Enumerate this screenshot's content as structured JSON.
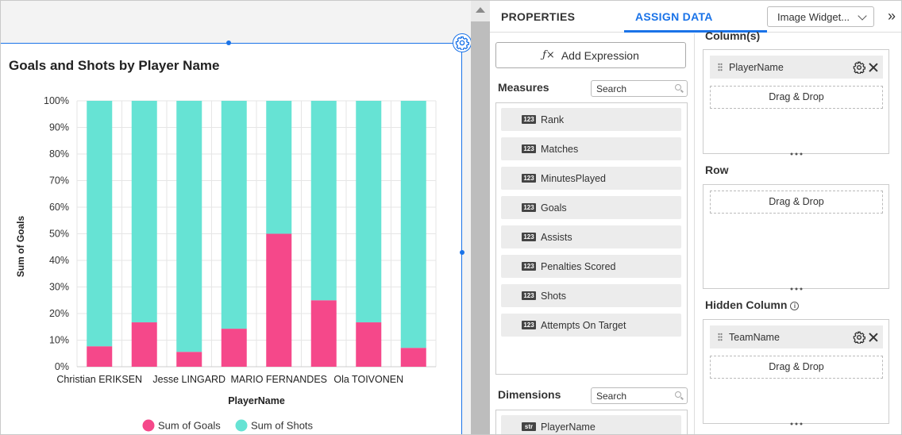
{
  "canvas": {
    "widget_title": "Goals and Shots by Player Name"
  },
  "chart_data": {
    "type": "bar",
    "stacked": "100%",
    "title": "Goals and Shots by Player Name",
    "xlabel": "PlayerName",
    "ylabel": "Sum of Goals",
    "ylim": [
      0,
      100
    ],
    "y_ticks": [
      "0%",
      "10%",
      "20%",
      "30%",
      "40%",
      "50%",
      "60%",
      "70%",
      "80%",
      "90%",
      "100%"
    ],
    "x_tick_labels": [
      "Christian ERIKSEN",
      "Jesse LINGARD",
      "MARIO FERNANDES",
      "Ola TOIVONEN"
    ],
    "categories": [
      "",
      "",
      "",
      "",
      "",
      "",
      "",
      ""
    ],
    "series": [
      {
        "name": "Sum of Goals",
        "color": "#f5488a",
        "values": [
          7.7,
          16.7,
          5.6,
          14.3,
          50,
          25,
          16.7,
          7.1
        ]
      },
      {
        "name": "Sum of Shots",
        "color": "#66e3d4",
        "values": [
          92.3,
          83.3,
          94.4,
          85.7,
          50,
          75,
          83.3,
          92.9
        ]
      }
    ],
    "legend": "bottom",
    "grid": true
  },
  "panel": {
    "tab_properties": "PROPERTIES",
    "tab_assign": "ASSIGN DATA",
    "widget_selector": "Image Widget...",
    "add_expression": "Add Expression",
    "measures_title": "Measures",
    "measures_search": "Search",
    "measures": [
      "Rank",
      "Matches",
      "MinutesPlayed",
      "Goals",
      "Assists",
      "Penalties Scored",
      "Shots",
      "Attempts On Target"
    ],
    "measure_badge": "123",
    "dimensions_title": "Dimensions",
    "dimensions_search": "Search",
    "dimensions": [
      "PlayerName"
    ],
    "dimension_badge": "str",
    "columns_title": "Column(s)",
    "columns_field": "PlayerName",
    "row_title": "Row",
    "hidden_title": "Hidden Column",
    "hidden_field": "TeamName",
    "drop_label": "Drag & Drop"
  },
  "colors": {
    "accent": "#1a73e8",
    "goals": "#f5488a",
    "shots": "#66e3d4"
  }
}
